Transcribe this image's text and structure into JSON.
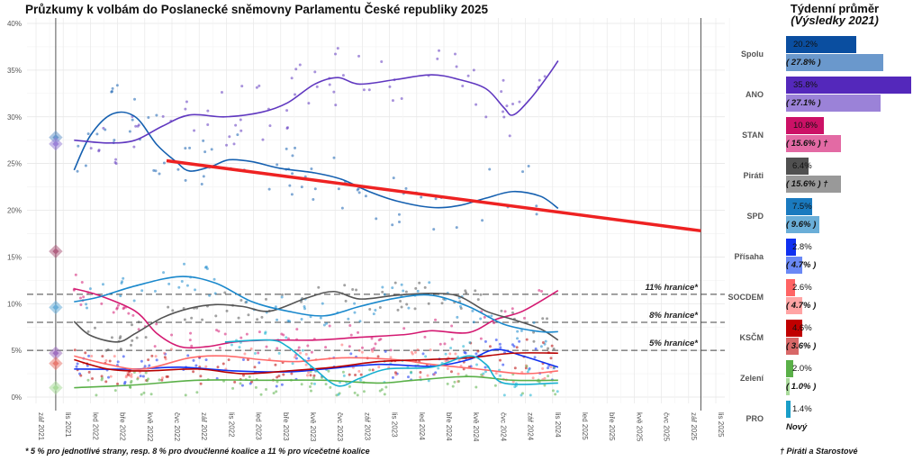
{
  "title": "Průzkumy k volbám do Poslanecké sněmovny Parlamentu České republiky 2025",
  "footnote": "* 5 % pro jednotlivé strany, resp. 8 % pro dvoučlenné koalice a 11 % pro vícečetné koalice",
  "side_panel": {
    "title": "Týdenní průměr",
    "subtitle": "(Výsledky 2021)",
    "footnote": "† Piráti a Starostové",
    "parties": [
      {
        "name": "Spolu",
        "current": 20.2,
        "current_label": "20.2%",
        "result": 27.8,
        "result_label": "( 27.8% )",
        "color": "#0a4ea0",
        "result_color": "#6a98cc"
      },
      {
        "name": "ANO",
        "current": 35.8,
        "current_label": "35.8%",
        "result": 27.1,
        "result_label": "( 27.1% )",
        "color": "#5428bb",
        "result_color": "#9b82d8"
      },
      {
        "name": "STAN",
        "current": 10.8,
        "current_label": "10.8%",
        "result": 15.6,
        "result_label": "( 15.6% ) †",
        "color": "#cc1166",
        "result_color": "#e36aa4"
      },
      {
        "name": "Piráti",
        "current": 6.4,
        "current_label": "6.4%",
        "result": 15.6,
        "result_label": "( 15.6% ) †",
        "color": "#505050",
        "result_color": "#999999"
      },
      {
        "name": "SPD",
        "current": 7.5,
        "current_label": "7.5%",
        "result": 9.6,
        "result_label": "( 9.6% )",
        "color": "#1a7abf",
        "result_color": "#6aaed8"
      },
      {
        "name": "Přísaha",
        "current": 2.8,
        "current_label": "2.8%",
        "result": 4.7,
        "result_label": "( 4.7% )",
        "color": "#1030f0",
        "result_color": "#6a88f5"
      },
      {
        "name": "SOCDEM",
        "current": 2.6,
        "current_label": "2.6%",
        "result": 4.7,
        "result_label": "( 4.7% )",
        "color": "#ff6464",
        "result_color": "#ffa4a4"
      },
      {
        "name": "KSČM",
        "current": 4.6,
        "current_label": "4.6%",
        "result": 3.6,
        "result_label": "( 3.6% )",
        "color": "#c00000",
        "result_color": "#d86868"
      },
      {
        "name": "Zelení",
        "current": 2.0,
        "current_label": "2.0%",
        "result": 1.0,
        "result_label": "( 1.0% )",
        "color": "#5ab048",
        "result_color": "#aadb9c"
      },
      {
        "name": "PRO",
        "current": 1.4,
        "current_label": "1.4%",
        "result": null,
        "result_label": "Nový",
        "color": "#1a9ec8",
        "result_color": "#ffffff"
      }
    ]
  },
  "chart_data": {
    "type": "line",
    "title": "Průzkumy k volbám do Poslanecké sněmovny Parlamentu České republiky 2025",
    "xlabel": "",
    "ylabel": "",
    "x_unit": "months since zář 2021",
    "xlim": [
      -0.6,
      50.5
    ],
    "ylim": [
      -1,
      40.5
    ],
    "yticks": [
      0,
      5,
      10,
      15,
      20,
      25,
      30,
      35,
      40
    ],
    "ytick_labels": [
      "0%",
      "5%",
      "10%",
      "15%",
      "20%",
      "25%",
      "30%",
      "35%",
      "40%"
    ],
    "xtick_labels": [
      "zář 2021",
      "lis 2021",
      "led 2022",
      "bře 2022",
      "kvě 2022",
      "čvc 2022",
      "zář 2022",
      "lis 2022",
      "led 2023",
      "bře 2023",
      "kvě 2023",
      "čvc 2023",
      "zář 2023",
      "lis 2023",
      "led 2024",
      "bře 2024",
      "kvě 2024",
      "čvc 2024",
      "zář 2024",
      "lis 2024",
      "led 2025",
      "bře 2025",
      "kvě 2025",
      "čvc 2025",
      "zář 2025",
      "lis 2025"
    ],
    "grid": true,
    "election_lines": [
      1.45,
      48.9
    ],
    "thresholds": [
      {
        "value": 11,
        "label": "11% hranice*"
      },
      {
        "value": 8,
        "label": "8% hranice*"
      },
      {
        "value": 5,
        "label": "5% hranice*"
      }
    ],
    "trend_line": {
      "color": "#ee2222",
      "points": [
        [
          9.6,
          25.3
        ],
        [
          48.9,
          17.8
        ]
      ]
    },
    "results_2021": [
      {
        "value": 27.8,
        "color": "#6a98cc"
      },
      {
        "value": 27.1,
        "color": "#9b82d8"
      },
      {
        "value": 15.6,
        "color": "#b06080"
      },
      {
        "value": 9.6,
        "color": "#6aaed8"
      },
      {
        "value": 4.7,
        "color": "#a070c0"
      },
      {
        "value": 3.6,
        "color": "#e87a70"
      },
      {
        "value": 1.0,
        "color": "#aadb9c"
      }
    ],
    "series": [
      {
        "name": "Spolu",
        "color": "#1560b0",
        "points": [
          [
            2.8,
            24.3
          ],
          [
            4,
            28
          ],
          [
            5.6,
            30.3
          ],
          [
            7.3,
            30
          ],
          [
            8.9,
            27
          ],
          [
            10.3,
            25.2
          ],
          [
            11.3,
            24.2
          ],
          [
            12.9,
            24.7
          ],
          [
            14.2,
            25.4
          ],
          [
            15.9,
            25.2
          ],
          [
            17.9,
            24.5
          ],
          [
            20.5,
            24
          ],
          [
            22.5,
            23.3
          ],
          [
            24.5,
            22
          ],
          [
            26.5,
            21
          ],
          [
            29.1,
            20.3
          ],
          [
            31.1,
            20.5
          ],
          [
            33.1,
            21.3
          ],
          [
            35.1,
            22
          ],
          [
            37.1,
            21.5
          ],
          [
            38.4,
            20.2
          ]
        ]
      },
      {
        "name": "ANO",
        "color": "#6038c0",
        "points": [
          [
            2.8,
            27.5
          ],
          [
            5.3,
            27.2
          ],
          [
            7.3,
            27.5
          ],
          [
            9.3,
            29
          ],
          [
            11.3,
            30.2
          ],
          [
            13.9,
            30
          ],
          [
            16.6,
            30.5
          ],
          [
            18.5,
            31.5
          ],
          [
            20.5,
            33.5
          ],
          [
            22.2,
            34.2
          ],
          [
            23.8,
            33.5
          ],
          [
            26.5,
            34
          ],
          [
            29.1,
            34.5
          ],
          [
            31.1,
            34
          ],
          [
            33.1,
            33
          ],
          [
            34.4,
            31
          ],
          [
            35.1,
            30.2
          ],
          [
            36.4,
            32
          ],
          [
            37.7,
            34.5
          ],
          [
            38.4,
            36
          ]
        ]
      },
      {
        "name": "STAN",
        "color": "#d41a72",
        "points": [
          [
            2.8,
            11.6
          ],
          [
            4.6,
            10.9
          ],
          [
            7.3,
            9.2
          ],
          [
            8.9,
            6.8
          ],
          [
            10.6,
            5.4
          ],
          [
            12.6,
            5.4
          ],
          [
            14.6,
            5.9
          ],
          [
            17.2,
            6.1
          ],
          [
            20.5,
            6.1
          ],
          [
            23.8,
            6.4
          ],
          [
            27.2,
            6.7
          ],
          [
            29.1,
            7.1
          ],
          [
            31.8,
            6.9
          ],
          [
            33.8,
            8.3
          ],
          [
            35.8,
            9.2
          ],
          [
            38.4,
            11.4
          ]
        ]
      },
      {
        "name": "Piráti",
        "color": "#555555",
        "points": [
          [
            2.8,
            8.1
          ],
          [
            4,
            6.6
          ],
          [
            6,
            5.9
          ],
          [
            7.3,
            6.8
          ],
          [
            9.3,
            8.5
          ],
          [
            11.3,
            9.5
          ],
          [
            13.2,
            9.9
          ],
          [
            15.2,
            9.7
          ],
          [
            17.2,
            9.2
          ],
          [
            19.9,
            10.6
          ],
          [
            21.9,
            11.3
          ],
          [
            23.8,
            10.5
          ],
          [
            26.5,
            10.9
          ],
          [
            29.1,
            11.1
          ],
          [
            31.1,
            10.8
          ],
          [
            33.1,
            9.2
          ],
          [
            35.1,
            8.3
          ],
          [
            37.1,
            7.3
          ],
          [
            38.4,
            6.1
          ]
        ]
      },
      {
        "name": "SPD",
        "color": "#1a88cc",
        "points": [
          [
            2.8,
            10.2
          ],
          [
            4.6,
            10.7
          ],
          [
            7.3,
            11.9
          ],
          [
            10.6,
            12.9
          ],
          [
            13.2,
            12.2
          ],
          [
            15.9,
            10.2
          ],
          [
            18.5,
            9.2
          ],
          [
            21.2,
            8.7
          ],
          [
            23.8,
            9.7
          ],
          [
            26.5,
            10.6
          ],
          [
            29.1,
            10.9
          ],
          [
            31.8,
            9.7
          ],
          [
            34.4,
            7.8
          ],
          [
            37.1,
            7
          ],
          [
            38.4,
            7
          ]
        ]
      },
      {
        "name": "Přísaha",
        "color": "#1030f0",
        "points": [
          [
            2.8,
            3
          ],
          [
            7.3,
            3
          ],
          [
            10.6,
            3.2
          ],
          [
            14.6,
            2.8
          ],
          [
            18.5,
            2.7
          ],
          [
            21.2,
            3
          ],
          [
            25.2,
            3.5
          ],
          [
            29.1,
            3.3
          ],
          [
            31.8,
            4
          ],
          [
            33.8,
            5.1
          ],
          [
            35.8,
            4.4
          ],
          [
            38.4,
            3.2
          ]
        ]
      },
      {
        "name": "SOCDEM",
        "color": "#ff6a6a",
        "points": [
          [
            2.8,
            4.4
          ],
          [
            5.3,
            3.5
          ],
          [
            7.9,
            3
          ],
          [
            11.3,
            4.2
          ],
          [
            13.9,
            4.4
          ],
          [
            16.6,
            4
          ],
          [
            19.2,
            3.8
          ],
          [
            22.5,
            4.2
          ],
          [
            26.5,
            4
          ],
          [
            29.1,
            3.5
          ],
          [
            32.5,
            3
          ],
          [
            35.8,
            2.5
          ],
          [
            38.4,
            2.8
          ]
        ]
      },
      {
        "name": "KSČM",
        "color": "#b80000",
        "points": [
          [
            2.8,
            4
          ],
          [
            5.3,
            3
          ],
          [
            7.9,
            2.8
          ],
          [
            11.9,
            3
          ],
          [
            15.2,
            2.5
          ],
          [
            18.5,
            2.8
          ],
          [
            21.9,
            3.2
          ],
          [
            25.2,
            3.8
          ],
          [
            28.5,
            4
          ],
          [
            31.8,
            4.2
          ],
          [
            35.1,
            4.7
          ],
          [
            38.4,
            4.7
          ]
        ]
      },
      {
        "name": "Zelení",
        "color": "#5ab048",
        "points": [
          [
            2.8,
            1
          ],
          [
            7.3,
            1.3
          ],
          [
            11.9,
            1.8
          ],
          [
            17.2,
            1.8
          ],
          [
            21.2,
            1.8
          ],
          [
            25.2,
            1.5
          ],
          [
            27.8,
            1.8
          ],
          [
            31.8,
            2.2
          ],
          [
            35.1,
            1.8
          ],
          [
            38.4,
            1.8
          ]
        ]
      },
      {
        "name": "PRO",
        "color": "#18b0d0",
        "points": [
          [
            13.9,
            5.9
          ],
          [
            17.2,
            6.1
          ],
          [
            18.5,
            5.4
          ],
          [
            20.5,
            3
          ],
          [
            22.2,
            1.2
          ],
          [
            23.8,
            2
          ],
          [
            25.8,
            3
          ],
          [
            29.1,
            3.2
          ],
          [
            31.8,
            4.4
          ],
          [
            33.1,
            3.5
          ],
          [
            34.4,
            1.5
          ],
          [
            38.4,
            1.5
          ]
        ]
      }
    ]
  }
}
